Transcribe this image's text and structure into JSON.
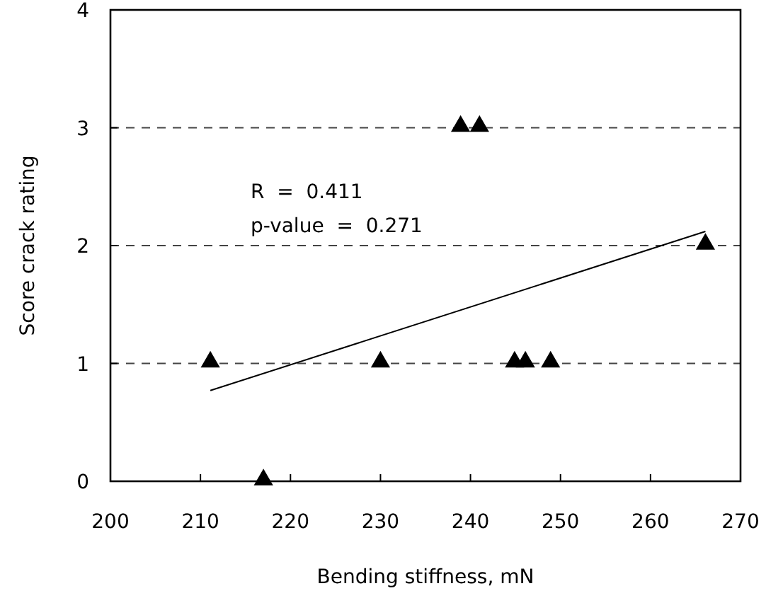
{
  "chart_data": {
    "type": "scatter",
    "xlabel": "Bending stiffness, mN",
    "ylabel": "Score crack rating",
    "xlim": [
      200,
      270
    ],
    "xticks": [
      200,
      210,
      220,
      230,
      240,
      250,
      260,
      270
    ],
    "ylim": [
      0,
      4
    ],
    "yticks": [
      0,
      1,
      2,
      3,
      4
    ],
    "grid": "y",
    "marker": "triangle",
    "annotations": [
      "R  =  0.411",
      "p-value  =  0.271"
    ],
    "series": [
      {
        "color": "#000000",
        "x": [
          211.1,
          217.0,
          230.0,
          238.9,
          241.0,
          244.9,
          246.1,
          248.9,
          266.1
        ],
        "values": [
          1,
          0,
          1,
          3,
          3,
          1,
          1,
          1,
          2
        ]
      },
      {
        "type": "line",
        "color": "#000000",
        "marker": "none",
        "x": [
          211.1,
          266.1
        ],
        "values": [
          0.77,
          2.12
        ]
      }
    ]
  }
}
